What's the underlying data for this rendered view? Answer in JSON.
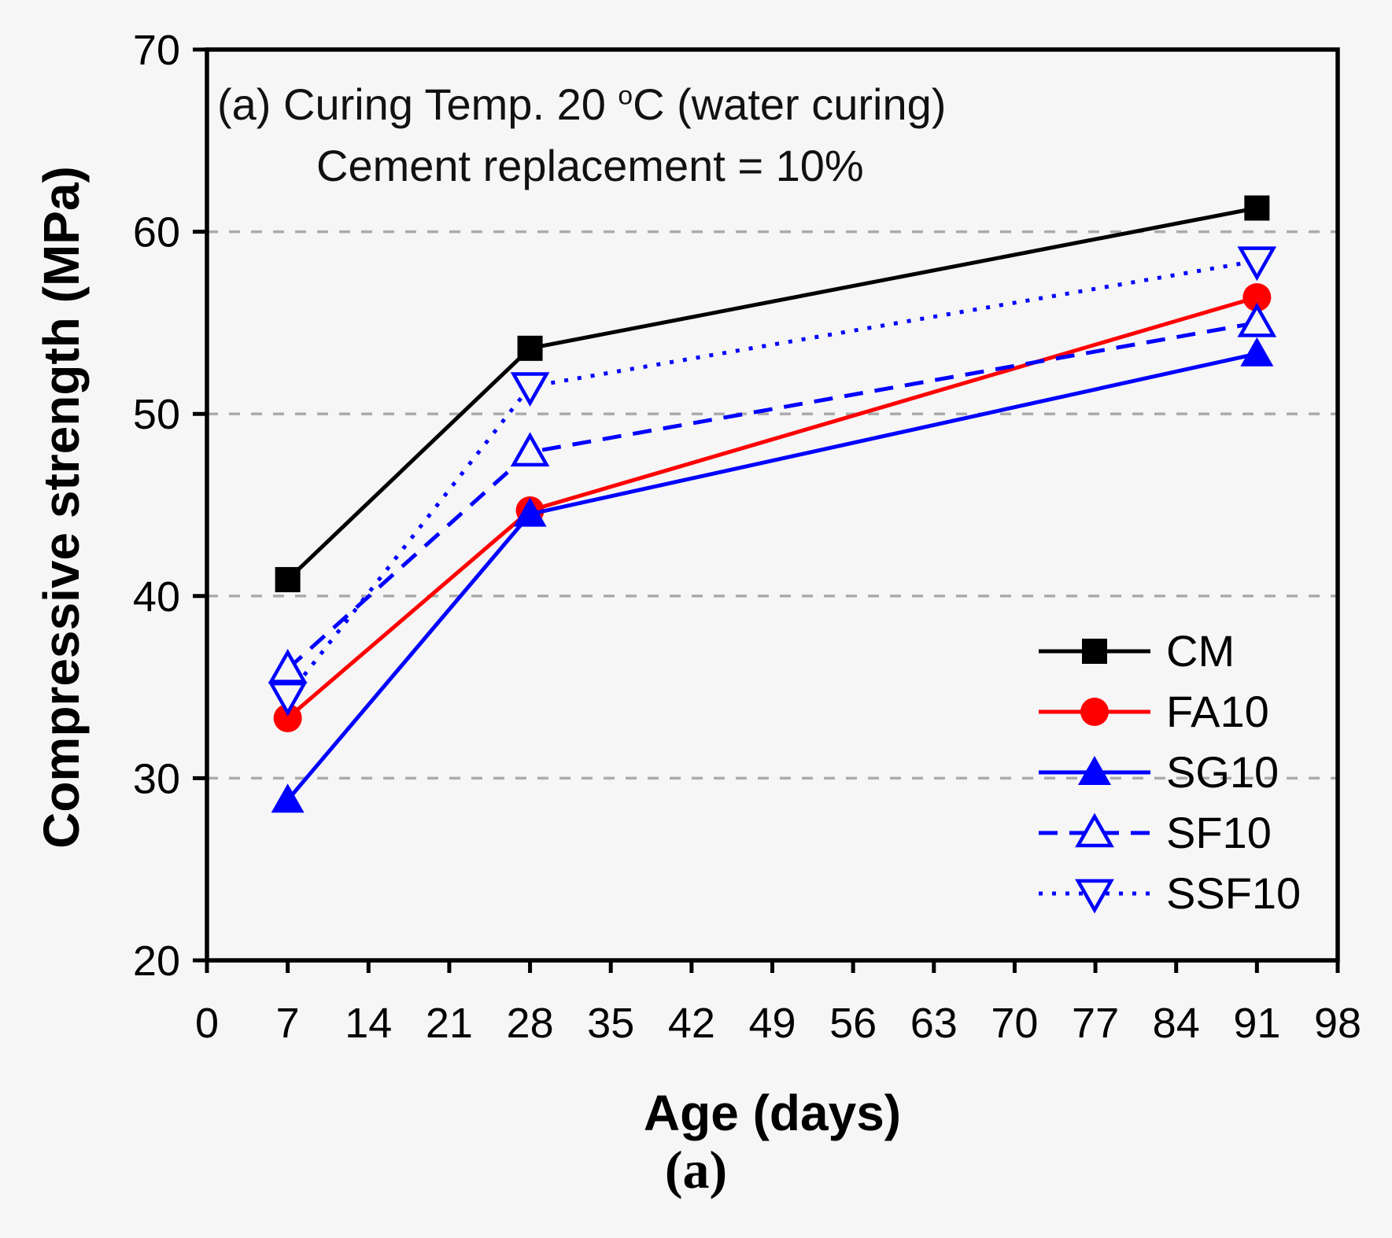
{
  "figure": {
    "title_line1_prefix": "(a) Curing Temp. 20 ",
    "title_degree": "o",
    "title_line1_suffix": "C (water curing)",
    "title_line2": "Cement replacement = 10%",
    "caption": "(a)"
  },
  "chart_data": {
    "type": "line",
    "title": "(a) Curing Temp. 20 °C (water curing), Cement replacement = 10%",
    "xlabel": "Age (days)",
    "ylabel": "Compressive strength (MPa)",
    "xlim": [
      0,
      98
    ],
    "ylim": [
      20,
      70
    ],
    "x_ticks": [
      0,
      7,
      14,
      21,
      28,
      35,
      42,
      49,
      56,
      63,
      70,
      77,
      84,
      91,
      98
    ],
    "y_ticks": [
      20,
      30,
      40,
      50,
      60,
      70
    ],
    "gridlines_y": [
      30,
      40,
      50,
      60
    ],
    "grid_on": true,
    "grid_color": "#ababab",
    "legend_position": "right-center-inside",
    "x": [
      7,
      28,
      91
    ],
    "series": [
      {
        "name": "CM",
        "color": "#000000",
        "line_style": "solid",
        "marker": "square",
        "marker_fill": "filled",
        "values": [
          40.9,
          53.6,
          61.3
        ]
      },
      {
        "name": "FA10",
        "color": "#ff0000",
        "line_style": "solid",
        "marker": "circle",
        "marker_fill": "filled",
        "values": [
          33.3,
          44.7,
          56.4
        ]
      },
      {
        "name": "SG10",
        "color": "#0000ff",
        "line_style": "solid",
        "marker": "triangle-up",
        "marker_fill": "filled",
        "values": [
          28.8,
          44.5,
          53.3
        ]
      },
      {
        "name": "SF10",
        "color": "#0000ff",
        "line_style": "dashed",
        "marker": "triangle-up",
        "marker_fill": "open",
        "values": [
          36.0,
          47.9,
          55.0
        ]
      },
      {
        "name": "SSF10",
        "color": "#0000ff",
        "line_style": "dotted",
        "marker": "triangle-down",
        "marker_fill": "open",
        "values": [
          34.5,
          51.5,
          58.4
        ]
      }
    ]
  }
}
